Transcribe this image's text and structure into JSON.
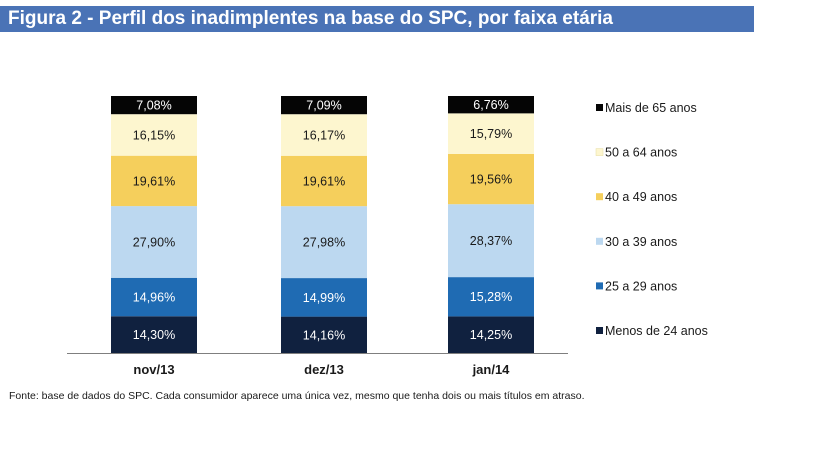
{
  "header": {
    "title": "Figura 2 - Perfil dos inadimplentes na base do SPC, por faixa etária"
  },
  "footer": {
    "source": "Fonte: base de dados do SPC. Cada consumidor aparece uma única vez, mesmo que tenha dois ou mais títulos em atraso."
  },
  "colors": {
    "title_bar": "#4a73b6"
  },
  "chart_data": {
    "type": "bar",
    "stacked": true,
    "percent_stacked": true,
    "categories": [
      "nov/13",
      "dez/13",
      "jan/14"
    ],
    "series": [
      {
        "name": "Menos de 24 anos",
        "values": [
          14.3,
          14.16,
          14.25
        ],
        "labels": [
          "14,30%",
          "14,16%",
          "14,25%"
        ],
        "color": "#10213f",
        "label_color": "#ffffff"
      },
      {
        "name": "25 a 29 anos",
        "values": [
          14.96,
          14.99,
          15.28
        ],
        "labels": [
          "14,96%",
          "14,99%",
          "15,28%"
        ],
        "color": "#1f6bb3",
        "label_color": "#ffffff"
      },
      {
        "name": "30 a 39 anos",
        "values": [
          27.9,
          27.98,
          28.37
        ],
        "labels": [
          "27,90%",
          "27,98%",
          "28,37%"
        ],
        "color": "#bcd8f0",
        "label_color": "#1a1a1a"
      },
      {
        "name": "40 a 49 anos",
        "values": [
          19.61,
          19.61,
          19.56
        ],
        "labels": [
          "19,61%",
          "19,61%",
          "19,56%"
        ],
        "color": "#f5cf5c",
        "label_color": "#1a1a1a"
      },
      {
        "name": "50 a 64 anos",
        "values": [
          16.15,
          16.17,
          15.79
        ],
        "labels": [
          "16,15%",
          "16,17%",
          "15,79%"
        ],
        "color": "#fdf6cf",
        "label_color": "#1a1a1a"
      },
      {
        "name": "Mais de 65 anos",
        "values": [
          7.08,
          7.09,
          6.76
        ],
        "labels": [
          "7,08%",
          "7,09%",
          "6,76%"
        ],
        "color": "#050505",
        "label_color": "#ffffff"
      }
    ],
    "ylim": [
      0,
      100
    ],
    "grid": false,
    "legend_position": "right"
  }
}
